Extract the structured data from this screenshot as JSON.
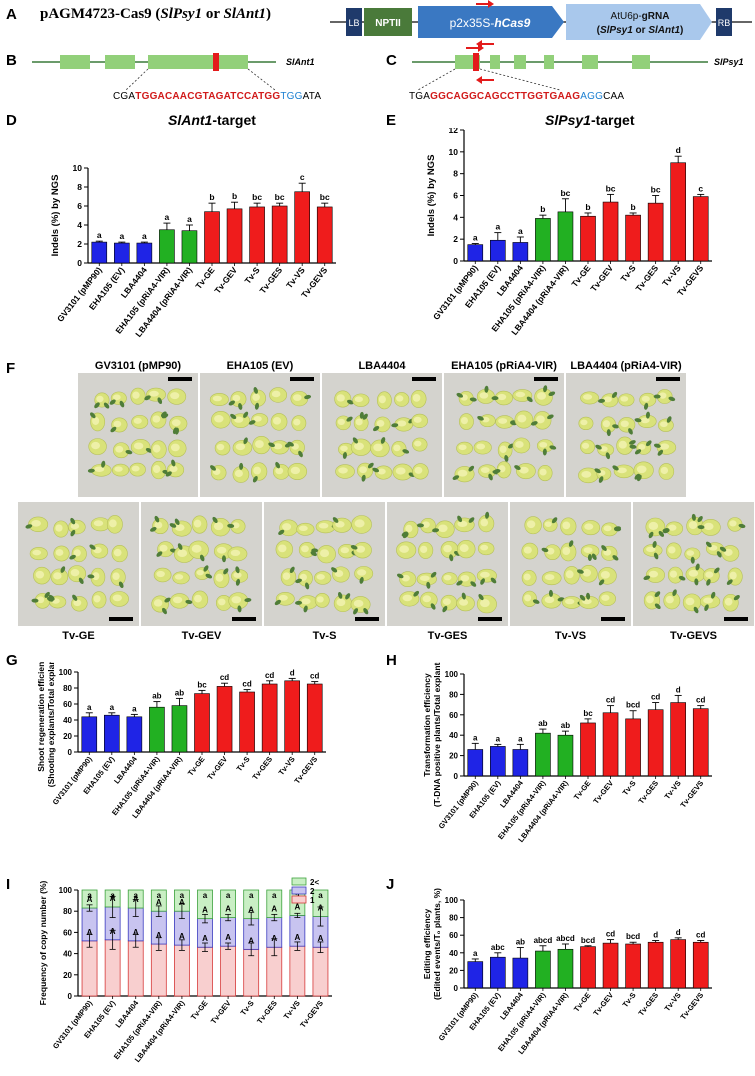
{
  "panels": {
    "A": "A",
    "B": "B",
    "C": "C",
    "D": "D",
    "E": "E",
    "F": "F",
    "G": "G",
    "H": "H",
    "I": "I",
    "J": "J"
  },
  "construct": {
    "title_plain": "pAGM4723-Cas9 (",
    "title_gene1": "SlPsy1",
    "title_or": " or ",
    "title_gene2": "SlAnt1",
    "title_close": ")",
    "lb": "LB",
    "nptii": "NPTII",
    "cas9_plain": "p2x35S-",
    "cas9_italic": "hCas9",
    "grna_line1_plain": "AtU6p-",
    "grna_line1_bold": "gRNA",
    "grna_line2_open": "(",
    "grna_line2_g1": "SlPsy1",
    "grna_line2_or": " or ",
    "grna_line2_g2": "SlAnt1",
    "grna_line2_close": ")",
    "rb": "RB",
    "colors": {
      "lb": "#1f3a6b",
      "nptii": "#4a7a3a",
      "cas9": "#3a78c2",
      "grna": "#a9c8ec",
      "arrow": "#e31b1b"
    }
  },
  "gene_b": {
    "name": "SlAnt1",
    "seq_pre": "CGA",
    "seq_guide": "TGGACAACGTAGATCCATGG",
    "seq_pam": "TGG",
    "seq_post": "ATA"
  },
  "gene_c": {
    "name": "SlPsy1",
    "seq_pre": "TGA",
    "seq_guide": "GGCAGGCAGCCTTGGTGAAG",
    "seq_pam": "AGG",
    "seq_post": "CAA"
  },
  "strains": [
    "GV3101 (pMP90)",
    "EHA105 (EV)",
    "LBA4404",
    "EHA105 (pRiA4-VIR)",
    "LBA4404 (pRiA4-VIR)",
    "Tv-GE",
    "Tv-GEV",
    "Tv-S",
    "Tv-GES",
    "Tv-VS",
    "Tv-GEVS"
  ],
  "bar_colors": [
    "#1f24e6",
    "#1f24e6",
    "#1f24e6",
    "#22b022",
    "#22b022",
    "#ef1c1c",
    "#ef1c1c",
    "#ef1c1c",
    "#ef1c1c",
    "#ef1c1c",
    "#ef1c1c"
  ],
  "photos": {
    "top": [
      "GV3101 (pMP90)",
      "EHA105 (EV)",
      "LBA4404",
      "EHA105 (pRiA4-VIR)",
      "LBA4404 (pRiA4-VIR)"
    ],
    "bottom": [
      "Tv-GE",
      "Tv-GEV",
      "Tv-S",
      "Tv-GES",
      "Tv-VS",
      "Tv-GEVS"
    ]
  },
  "chart_data": [
    {
      "id": "D",
      "type": "bar",
      "title_gene": "SlAnt1",
      "title_suffix": "-target",
      "ylabel": "Indels (%) by NGS",
      "ylim": [
        0,
        10
      ],
      "yticks": [
        0,
        2,
        4,
        6,
        8,
        10
      ],
      "values": [
        2.2,
        2.1,
        2.1,
        3.5,
        3.4,
        5.4,
        5.7,
        5.9,
        6.0,
        7.5,
        5.9
      ],
      "errors": [
        0.1,
        0.1,
        0.1,
        0.7,
        0.6,
        0.9,
        0.7,
        0.4,
        0.3,
        0.9,
        0.4
      ],
      "letters": [
        "a",
        "a",
        "a",
        "a",
        "a",
        "b",
        "b",
        "bc",
        "bc",
        "c",
        "bc"
      ]
    },
    {
      "id": "E",
      "type": "bar",
      "title_gene": "SlPsy1",
      "title_suffix": "-target",
      "ylabel": "Indels (%) by NGS",
      "ylim": [
        0,
        12
      ],
      "yticks": [
        0,
        2,
        4,
        6,
        8,
        10,
        12
      ],
      "values": [
        1.5,
        1.9,
        1.7,
        3.9,
        4.5,
        4.1,
        5.4,
        4.2,
        5.3,
        9.0,
        5.9
      ],
      "errors": [
        0.1,
        0.7,
        0.5,
        0.3,
        1.2,
        0.3,
        0.7,
        0.2,
        0.7,
        0.6,
        0.2
      ],
      "letters": [
        "a",
        "a",
        "a",
        "b",
        "bc",
        "b",
        "bc",
        "b",
        "bc",
        "d",
        "c"
      ]
    },
    {
      "id": "G",
      "type": "bar",
      "ylabel": "Shoot regeneration efficiency",
      "ylabel2": "(Shooting explants/Total explants, %)",
      "ylim": [
        0,
        100
      ],
      "yticks": [
        0,
        20,
        40,
        60,
        80,
        100
      ],
      "values": [
        44,
        46,
        44,
        56,
        58,
        73,
        82,
        75,
        85,
        89,
        85
      ],
      "errors": [
        5,
        3,
        3,
        7,
        9,
        4,
        4,
        3,
        4,
        3,
        3
      ],
      "letters": [
        "a",
        "a",
        "a",
        "ab",
        "ab",
        "bc",
        "cd",
        "cd",
        "cd",
        "d",
        "cd"
      ]
    },
    {
      "id": "H",
      "type": "bar",
      "ylabel": "Transformation efficiency",
      "ylabel2": "(T-DNA positive plants/Total explants, %)",
      "ylim": [
        0,
        100
      ],
      "yticks": [
        0,
        20,
        40,
        60,
        80,
        100
      ],
      "values": [
        26,
        29,
        26,
        42,
        40,
        52,
        62,
        56,
        65,
        72,
        66
      ],
      "errors": [
        6,
        2,
        5,
        4,
        4,
        4,
        7,
        8,
        7,
        7,
        3
      ],
      "letters": [
        "a",
        "a",
        "a",
        "ab",
        "ab",
        "bc",
        "cd",
        "bcd",
        "cd",
        "d",
        "cd"
      ]
    },
    {
      "id": "I",
      "type": "stacked-bar",
      "ylabel": "Frequency of copy number (%)",
      "ylim": [
        0,
        100
      ],
      "yticks": [
        0,
        20,
        40,
        60,
        80,
        100
      ],
      "legend": [
        "2<",
        "2",
        "1"
      ],
      "legend_colors": [
        "#c9efc4",
        "#c8c4f0",
        "#f8cfcf"
      ],
      "edge_colors": [
        "#3ea23e",
        "#3b3bbf",
        "#d63a3a"
      ],
      "values_1": [
        52,
        53,
        52,
        49,
        48,
        46,
        47,
        44,
        46,
        47,
        46
      ],
      "errors_1": [
        6,
        9,
        6,
        6,
        5,
        4,
        3,
        6,
        8,
        4,
        5
      ],
      "values_2": [
        31,
        31,
        31,
        31,
        32,
        27,
        27,
        29,
        28,
        29,
        29
      ],
      "errors_2": [
        3,
        10,
        8,
        5,
        7,
        4,
        3,
        6,
        3,
        2,
        9
      ],
      "values_3": [
        17,
        16,
        17,
        20,
        20,
        27,
        26,
        27,
        26,
        24,
        25
      ],
      "letters_1": [
        "A",
        "A",
        "A",
        "A",
        "A",
        "A",
        "A",
        "A",
        "A",
        "A",
        "A"
      ],
      "letters_2": [
        "A",
        "A",
        "A",
        "A",
        "A",
        "A",
        "A",
        "A",
        "A",
        "A",
        "A"
      ],
      "letters_3": [
        "a",
        "a",
        "a",
        "a",
        "a",
        "a",
        "a",
        "a",
        "a",
        "a",
        "a"
      ]
    },
    {
      "id": "J",
      "type": "bar",
      "ylabel": "Editing efficiency",
      "ylabel2": "(Edited events/T₀ plants, %)",
      "ylim": [
        0,
        100
      ],
      "yticks": [
        0,
        20,
        40,
        60,
        80,
        100
      ],
      "values": [
        30,
        35,
        34,
        42,
        44,
        47,
        51,
        50,
        52,
        55,
        52
      ],
      "errors": [
        3,
        5,
        12,
        6,
        6,
        1,
        4,
        2,
        2,
        2,
        2
      ],
      "letters": [
        "a",
        "abc",
        "ab",
        "abcd",
        "abcd",
        "bcd",
        "cd",
        "bcd",
        "d",
        "d",
        "cd"
      ]
    }
  ]
}
